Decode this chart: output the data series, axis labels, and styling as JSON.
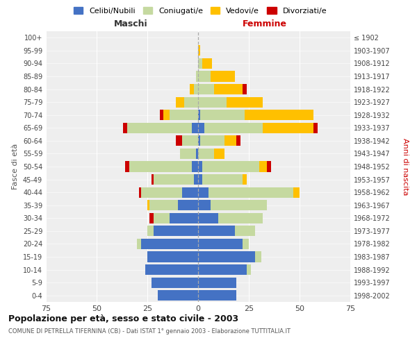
{
  "age_groups": [
    "0-4",
    "5-9",
    "10-14",
    "15-19",
    "20-24",
    "25-29",
    "30-34",
    "35-39",
    "40-44",
    "45-49",
    "50-54",
    "55-59",
    "60-64",
    "65-69",
    "70-74",
    "75-79",
    "80-84",
    "85-89",
    "90-94",
    "95-99",
    "100+"
  ],
  "birth_years": [
    "1998-2002",
    "1993-1997",
    "1988-1992",
    "1983-1987",
    "1978-1982",
    "1973-1977",
    "1968-1972",
    "1963-1967",
    "1958-1962",
    "1953-1957",
    "1948-1952",
    "1943-1947",
    "1938-1942",
    "1933-1937",
    "1928-1932",
    "1923-1927",
    "1918-1922",
    "1913-1917",
    "1908-1912",
    "1903-1907",
    "≤ 1902"
  ],
  "males": {
    "celibi": [
      20,
      23,
      26,
      25,
      28,
      22,
      14,
      10,
      8,
      2,
      3,
      1,
      0,
      3,
      0,
      0,
      0,
      0,
      0,
      0,
      0
    ],
    "coniugati": [
      0,
      0,
      0,
      0,
      2,
      3,
      8,
      14,
      20,
      20,
      31,
      8,
      8,
      32,
      14,
      7,
      2,
      1,
      0,
      0,
      0
    ],
    "vedovi": [
      0,
      0,
      0,
      0,
      0,
      0,
      0,
      1,
      0,
      0,
      0,
      0,
      0,
      0,
      3,
      4,
      2,
      0,
      0,
      0,
      0
    ],
    "divorziati": [
      0,
      0,
      0,
      0,
      0,
      0,
      2,
      0,
      1,
      1,
      2,
      0,
      3,
      2,
      2,
      0,
      0,
      0,
      0,
      0,
      0
    ]
  },
  "females": {
    "nubili": [
      19,
      19,
      24,
      28,
      22,
      18,
      10,
      6,
      5,
      2,
      2,
      0,
      1,
      3,
      1,
      0,
      0,
      0,
      0,
      0,
      0
    ],
    "coniugate": [
      0,
      0,
      2,
      3,
      3,
      10,
      22,
      28,
      42,
      20,
      28,
      8,
      12,
      29,
      22,
      14,
      8,
      6,
      2,
      0,
      0
    ],
    "vedove": [
      0,
      0,
      0,
      0,
      0,
      0,
      0,
      0,
      3,
      2,
      4,
      5,
      6,
      25,
      34,
      18,
      14,
      12,
      5,
      1,
      0
    ],
    "divorziate": [
      0,
      0,
      0,
      0,
      0,
      0,
      0,
      0,
      0,
      0,
      2,
      0,
      2,
      2,
      0,
      0,
      2,
      0,
      0,
      0,
      0
    ]
  },
  "color_celibi": "#4472c4",
  "color_coniugati": "#c5d9a0",
  "color_vedovi": "#ffc000",
  "color_divorziati": "#cc0000",
  "title": "Popolazione per età, sesso e stato civile - 2003",
  "subtitle": "COMUNE DI PETRELLA TIFERNINA (CB) - Dati ISTAT 1° gennaio 2003 - Elaborazione TUTTITALIA.IT",
  "xlabel_left": "Maschi",
  "xlabel_right": "Femmine",
  "ylabel_left": "Fasce di età",
  "ylabel_right": "Anni di nascita",
  "xlim": 75,
  "bg_color": "#ffffff",
  "grid_color": "#cccccc",
  "plot_bg": "#eeeeee"
}
